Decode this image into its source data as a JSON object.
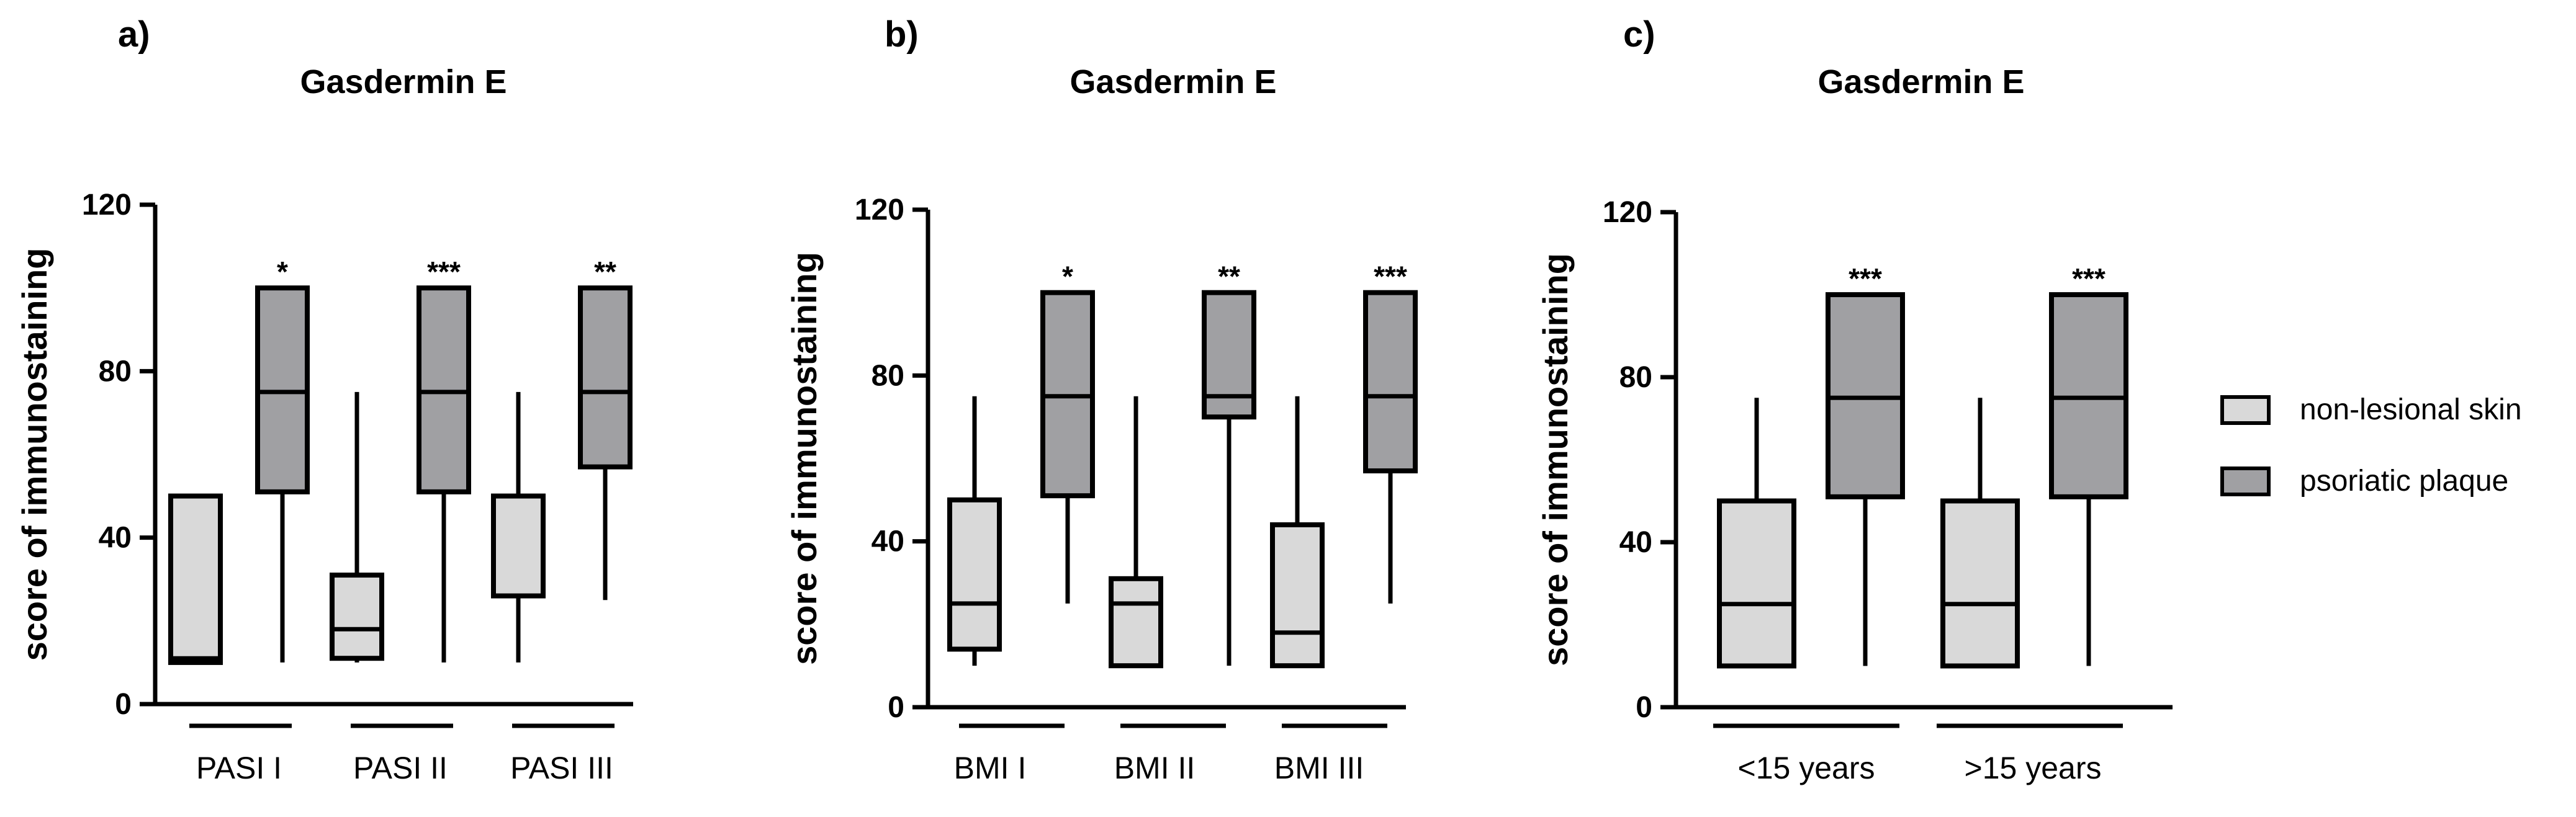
{
  "chart_data": [
    {
      "type": "box",
      "panel_label": "a)",
      "title": "Gasdermin E",
      "ylabel": "score of immunostaining",
      "ylim": [
        0,
        120
      ],
      "yticks": [
        "0",
        "40",
        "80",
        "120"
      ],
      "groups": [
        {
          "label": "PASI I",
          "boxes": [
            {
              "series": "non-lesional skin",
              "min": 10,
              "q1": 10,
              "median": 11,
              "q3": 50,
              "max": 50,
              "star": ""
            },
            {
              "series": "psoriatic plaque",
              "min": 10,
              "q1": 51,
              "median": 75,
              "q3": 100,
              "max": 100,
              "star": "*"
            }
          ]
        },
        {
          "label": "PASI II",
          "boxes": [
            {
              "series": "non-lesional skin",
              "min": 10,
              "q1": 11,
              "median": 18,
              "q3": 31,
              "max": 75,
              "star": ""
            },
            {
              "series": "psoriatic plaque",
              "min": 10,
              "q1": 51,
              "median": 75,
              "q3": 100,
              "max": 100,
              "star": "***"
            }
          ]
        },
        {
          "label": "PASI III",
          "boxes": [
            {
              "series": "non-lesional skin",
              "min": 10,
              "q1": 26,
              "median": 26,
              "q3": 50,
              "max": 75,
              "star": ""
            },
            {
              "series": "psoriatic plaque",
              "min": 25,
              "q1": 57,
              "median": 75,
              "q3": 100,
              "max": 100,
              "star": "**"
            }
          ]
        }
      ]
    },
    {
      "type": "box",
      "panel_label": "b)",
      "title": "Gasdermin E",
      "ylabel": "score of immunostaining",
      "ylim": [
        0,
        120
      ],
      "yticks": [
        "0",
        "40",
        "80",
        "120"
      ],
      "groups": [
        {
          "label": "BMI I",
          "boxes": [
            {
              "series": "non-lesional skin",
              "min": 10,
              "q1": 14,
              "median": 25,
              "q3": 50,
              "max": 75,
              "star": ""
            },
            {
              "series": "psoriatic plaque",
              "min": 25,
              "q1": 51,
              "median": 75,
              "q3": 100,
              "max": 100,
              "star": "*"
            }
          ]
        },
        {
          "label": "BMI II",
          "boxes": [
            {
              "series": "non-lesional skin",
              "min": 10,
              "q1": 10,
              "median": 25,
              "q3": 31,
              "max": 75,
              "star": ""
            },
            {
              "series": "psoriatic plaque",
              "min": 10,
              "q1": 70,
              "median": 75,
              "q3": 100,
              "max": 100,
              "star": "**"
            }
          ]
        },
        {
          "label": "BMI III",
          "boxes": [
            {
              "series": "non-lesional skin",
              "min": 10,
              "q1": 10,
              "median": 18,
              "q3": 44,
              "max": 75,
              "star": ""
            },
            {
              "series": "psoriatic plaque",
              "min": 25,
              "q1": 57,
              "median": 75,
              "q3": 100,
              "max": 100,
              "star": "***"
            }
          ]
        }
      ]
    },
    {
      "type": "box",
      "panel_label": "c)",
      "title": "Gasdermin E",
      "ylabel": "score of immunostaining",
      "ylim": [
        0,
        120
      ],
      "yticks": [
        "0",
        "40",
        "80",
        "120"
      ],
      "groups": [
        {
          "label": "<15 years",
          "boxes": [
            {
              "series": "non-lesional skin",
              "min": 10,
              "q1": 10,
              "median": 25,
              "q3": 50,
              "max": 75,
              "star": ""
            },
            {
              "series": "psoriatic plaque",
              "min": 10,
              "q1": 51,
              "median": 75,
              "q3": 100,
              "max": 100,
              "star": "***"
            }
          ]
        },
        {
          "label": ">15 years",
          "boxes": [
            {
              "series": "non-lesional skin",
              "min": 10,
              "q1": 10,
              "median": 25,
              "q3": 50,
              "max": 75,
              "star": ""
            },
            {
              "series": "psoriatic plaque",
              "min": 10,
              "q1": 51,
              "median": 75,
              "q3": 100,
              "max": 100,
              "star": "***"
            }
          ]
        }
      ]
    }
  ],
  "legend": {
    "position": "right",
    "items": [
      {
        "label": "non-lesional skin",
        "color": "#d9d9d9"
      },
      {
        "label": "psoriatic plaque",
        "color": "#a0a0a3"
      }
    ]
  },
  "colors": {
    "non_lesional": "#d9d9d9",
    "psoriatic": "#a0a0a3",
    "stroke": "#000000"
  }
}
